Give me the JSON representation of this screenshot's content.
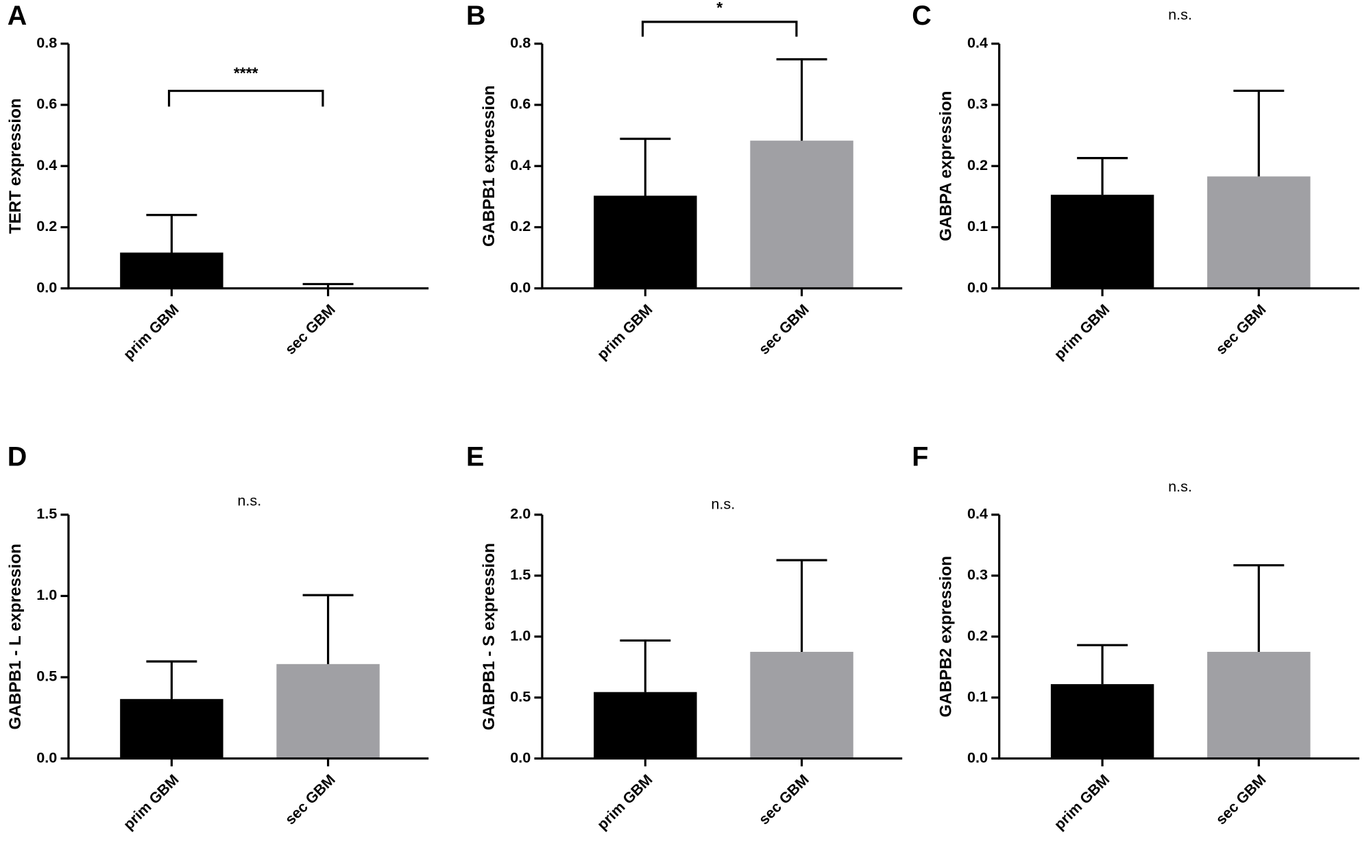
{
  "chart_data": [
    {
      "type": "bar",
      "panel": "A",
      "ylabel": "TERT expression",
      "categories": [
        "prim GBM",
        "sec GBM"
      ],
      "values": [
        0.117,
        0.002
      ],
      "errors": [
        0.123,
        0.012
      ],
      "colors": [
        "#000000",
        "#a0a0a4"
      ],
      "ylim": [
        0,
        0.8
      ],
      "yticks": [
        {
          "value": 0,
          "label": "0.0"
        },
        0.2,
        0.4,
        0.6,
        0.8
      ],
      "annotation": "****",
      "bracket": true
    },
    {
      "type": "bar",
      "panel": "B",
      "ylabel": "GABPB1 expression",
      "categories": [
        "prim GBM",
        "sec GBM"
      ],
      "values": [
        0.303,
        0.483
      ],
      "errors": [
        0.186,
        0.266
      ],
      "colors": [
        "#000000",
        "#a0a0a4"
      ],
      "ylim": [
        0,
        0.8
      ],
      "yticks": [
        {
          "value": 0,
          "label": "0.0"
        },
        0.2,
        0.4,
        0.6,
        0.8
      ],
      "annotation": "*",
      "bracket": true
    },
    {
      "type": "bar",
      "panel": "C",
      "ylabel": "GABPA expression",
      "categories": [
        "prim GBM",
        "sec GBM"
      ],
      "values": [
        0.153,
        0.183
      ],
      "errors": [
        0.06,
        0.14
      ],
      "colors": [
        "#000000",
        "#a0a0a4"
      ],
      "ylim": [
        0,
        0.4
      ],
      "yticks": [
        {
          "value": 0,
          "label": "0.0"
        },
        0.1,
        0.2,
        0.3,
        0.4
      ],
      "annotation": "n.s.",
      "bracket": false
    },
    {
      "type": "bar",
      "panel": "D",
      "ylabel": "GABPB1 - L expression",
      "categories": [
        "prim GBM",
        "sec GBM"
      ],
      "values": [
        0.366,
        0.581
      ],
      "errors": [
        0.231,
        0.424
      ],
      "colors": [
        "#000000",
        "#a0a0a4"
      ],
      "ylim": [
        0,
        1.5
      ],
      "yticks": [
        {
          "value": 0,
          "label": "0.0"
        },
        0.5,
        {
          "value": 1,
          "label": "1.0"
        },
        1.5
      ],
      "annotation": "n.s.",
      "bracket": false
    },
    {
      "type": "bar",
      "panel": "E",
      "ylabel": "GABPB1 - S expression",
      "categories": [
        "prim GBM",
        "sec GBM"
      ],
      "values": [
        0.545,
        0.875
      ],
      "errors": [
        0.423,
        0.752
      ],
      "colors": [
        "#000000",
        "#a0a0a4"
      ],
      "ylim": [
        0,
        2
      ],
      "yticks": [
        {
          "value": 0,
          "label": "0.0"
        },
        0.5,
        {
          "value": 1,
          "label": "1.0"
        },
        1.5,
        {
          "value": 2,
          "label": "2.0"
        }
      ],
      "annotation": "n.s.",
      "bracket": false
    },
    {
      "type": "bar",
      "panel": "F",
      "ylabel": "GABPB2 expression",
      "categories": [
        "prim GBM",
        "sec GBM"
      ],
      "values": [
        0.122,
        0.175
      ],
      "errors": [
        0.064,
        0.142
      ],
      "colors": [
        "#000000",
        "#a0a0a4"
      ],
      "ylim": [
        0,
        0.4
      ],
      "yticks": [
        {
          "value": 0,
          "label": "0.0"
        },
        0.1,
        0.2,
        0.3,
        0.4
      ],
      "annotation": "n.s.",
      "bracket": false
    }
  ]
}
